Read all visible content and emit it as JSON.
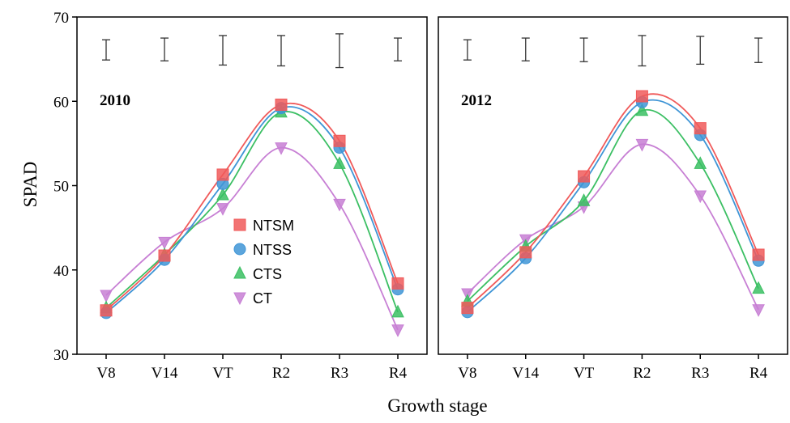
{
  "chart_data": {
    "type": "line",
    "ylabel": "SPAD",
    "xlabel": "Growth stage",
    "ylim": [
      30,
      70
    ],
    "yticks": [
      "30",
      "40",
      "50",
      "60",
      "70"
    ],
    "categories": [
      "V8",
      "V14",
      "VT",
      "R2",
      "R3",
      "R4"
    ],
    "legend_position": "center-left of first panel",
    "colors": {
      "NTSM": "#f05a5a",
      "NTSS": "#3f95d6",
      "CTS": "#3bbf63",
      "CT": "#c77fd4"
    },
    "panels": [
      {
        "label": "2010",
        "series": [
          {
            "name": "NTSM",
            "marker": "square",
            "values": [
              35.2,
              41.7,
              51.3,
              59.6,
              55.3,
              38.4
            ]
          },
          {
            "name": "NTSS",
            "marker": "circle",
            "values": [
              34.9,
              41.2,
              50.2,
              59.2,
              54.5,
              37.7
            ]
          },
          {
            "name": "CTS",
            "marker": "triangle-up",
            "values": [
              35.5,
              41.8,
              48.9,
              58.7,
              52.6,
              35.0
            ]
          },
          {
            "name": "CT",
            "marker": "triangle-down",
            "values": [
              37.0,
              43.3,
              47.3,
              54.5,
              47.8,
              32.9
            ]
          }
        ],
        "error_bars": [
          {
            "low": 64.9,
            "high": 67.3
          },
          {
            "low": 64.8,
            "high": 67.5
          },
          {
            "low": 64.3,
            "high": 67.8
          },
          {
            "low": 64.2,
            "high": 67.8
          },
          {
            "low": 64.0,
            "high": 68.0
          },
          {
            "low": 64.8,
            "high": 67.5
          }
        ]
      },
      {
        "label": "2012",
        "series": [
          {
            "name": "NTSM",
            "marker": "square",
            "values": [
              35.5,
              42.1,
              51.1,
              60.6,
              56.8,
              41.8
            ]
          },
          {
            "name": "NTSS",
            "marker": "circle",
            "values": [
              35.0,
              41.4,
              50.4,
              59.9,
              56.0,
              41.1
            ]
          },
          {
            "name": "CTS",
            "marker": "triangle-up",
            "values": [
              36.3,
              42.8,
              48.2,
              58.9,
              52.6,
              37.8
            ]
          },
          {
            "name": "CT",
            "marker": "triangle-down",
            "values": [
              37.2,
              43.6,
              47.5,
              54.9,
              48.8,
              35.3
            ]
          }
        ],
        "error_bars": [
          {
            "low": 64.9,
            "high": 67.3
          },
          {
            "low": 64.8,
            "high": 67.5
          },
          {
            "low": 64.7,
            "high": 67.5
          },
          {
            "low": 64.2,
            "high": 67.8
          },
          {
            "low": 64.4,
            "high": 67.7
          },
          {
            "low": 64.6,
            "high": 67.5
          }
        ]
      }
    ]
  }
}
